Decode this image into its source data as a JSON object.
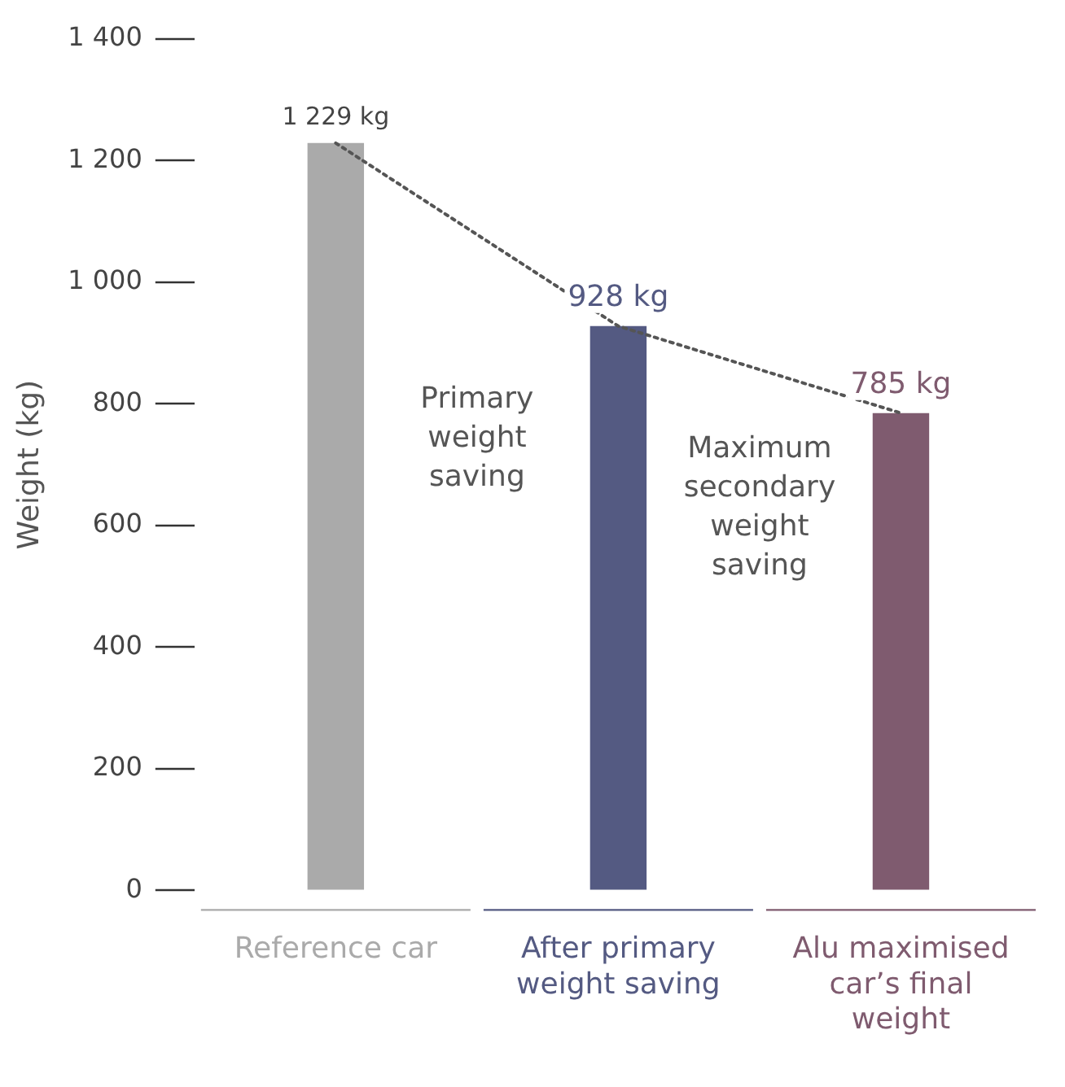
{
  "chart_data": {
    "type": "bar",
    "ylabel": "Weight (kg)",
    "categories": [
      "Reference car",
      "After primary weight saving",
      "Alu maximised car’s final weight"
    ],
    "series": [
      {
        "colors": [
          "#aaaaaa",
          "#545a82",
          "#7f5b6f"
        ],
        "values": [
          1229,
          928,
          785
        ],
        "value_labels": [
          "1 229 kg",
          "928 kg",
          "785 kg"
        ]
      },
      {
        "type": "line",
        "color": "#555555",
        "line_style": "dotted",
        "marker": "none",
        "values": [
          1229,
          928,
          785
        ]
      }
    ],
    "ylim": [
      0,
      1400
    ],
    "yticks": [
      0,
      200,
      400,
      600,
      800,
      {
        "value": 1000,
        "label": "1 000"
      },
      {
        "value": 1200,
        "label": "1 200"
      },
      {
        "value": 1400,
        "label": "1 400"
      }
    ],
    "annotations": [
      "Primary weight saving",
      "Maximum secondary weight saving"
    ],
    "grid": false,
    "legend": false
  }
}
